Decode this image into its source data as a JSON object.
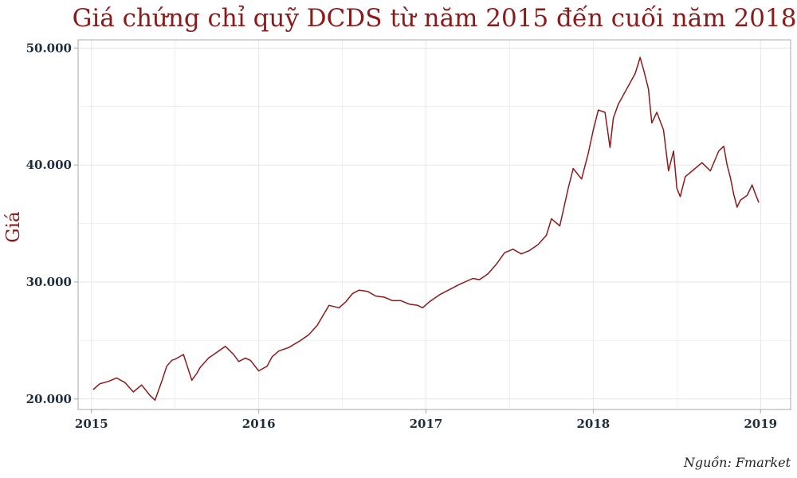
{
  "chart_data": {
    "type": "line",
    "title": "Giá chứng chỉ quỹ DCDS từ năm 2015 đến cuối năm 2018",
    "xlabel": "",
    "ylabel": "Giá",
    "source": "Nguồn: Fmarket",
    "xlim": [
      2014.92,
      2019.18
    ],
    "ylim": [
      19100,
      50700
    ],
    "x_ticks": [
      2015,
      2016,
      2017,
      2018,
      2019
    ],
    "x_tick_labels": [
      "2015",
      "2016",
      "2017",
      "2018",
      "2019"
    ],
    "y_ticks": [
      20000,
      30000,
      40000,
      50000
    ],
    "y_tick_labels": [
      "20.000",
      "30.000",
      "40.000",
      "50.000"
    ],
    "grid": true,
    "legend": "none",
    "series": [
      {
        "x": [
          2015.01,
          2015.05,
          2015.1,
          2015.15,
          2015.2,
          2015.25,
          2015.3,
          2015.35,
          2015.38,
          2015.42,
          2015.45,
          2015.48,
          2015.5,
          2015.55,
          2015.6,
          2015.63,
          2015.65,
          2015.7,
          2015.75,
          2015.8,
          2015.85,
          2015.88,
          2015.92,
          2015.95,
          2016.0,
          2016.05,
          2016.08,
          2016.12,
          2016.18,
          2016.25,
          2016.3,
          2016.35,
          2016.42,
          2016.48,
          2016.52,
          2016.56,
          2016.6,
          2016.65,
          2016.7,
          2016.75,
          2016.8,
          2016.85,
          2016.9,
          2016.95,
          2016.98,
          2017.02,
          2017.08,
          2017.12,
          2017.2,
          2017.28,
          2017.32,
          2017.37,
          2017.42,
          2017.47,
          2017.52,
          2017.57,
          2017.62,
          2017.67,
          2017.72,
          2017.75,
          2017.8,
          2017.85,
          2017.88,
          2017.93,
          2017.97,
          2018.0,
          2018.03,
          2018.07,
          2018.1,
          2018.12,
          2018.15,
          2018.2,
          2018.25,
          2018.27,
          2018.28,
          2018.3,
          2018.33,
          2018.35,
          2018.38,
          2018.42,
          2018.45,
          2018.48,
          2018.5,
          2018.52,
          2018.55,
          2018.6,
          2018.65,
          2018.7,
          2018.75,
          2018.78,
          2018.8,
          2018.82,
          2018.84,
          2018.86,
          2018.88,
          2018.92,
          2018.95,
          2018.97,
          2018.99
        ],
        "values": [
          20800,
          21300,
          21500,
          21800,
          21400,
          20600,
          21200,
          20300,
          19900,
          21500,
          22800,
          23300,
          23400,
          23800,
          21600,
          22200,
          22700,
          23500,
          24000,
          24500,
          23800,
          23200,
          23500,
          23300,
          22400,
          22800,
          23600,
          24100,
          24400,
          25000,
          25500,
          26300,
          28000,
          27800,
          28300,
          29000,
          29300,
          29200,
          28800,
          28700,
          28400,
          28400,
          28100,
          28000,
          27800,
          28300,
          28900,
          29200,
          29800,
          30300,
          30200,
          30700,
          31500,
          32500,
          32800,
          32400,
          32700,
          33200,
          34000,
          35400,
          34800,
          38000,
          39700,
          38800,
          41000,
          43000,
          44700,
          44500,
          41500,
          44000,
          45200,
          46500,
          47800,
          48700,
          49200,
          48200,
          46500,
          43600,
          44500,
          43000,
          39500,
          41200,
          38000,
          37300,
          39000,
          39600,
          40200,
          39500,
          41200,
          41600,
          40000,
          38900,
          37500,
          36400,
          37000,
          37400,
          38300,
          37500,
          36800
        ]
      }
    ]
  },
  "colors": {
    "line": "#8B1A1A",
    "title": "#8B1A1A",
    "ylabel": "#8B1A1A",
    "tick_text": "#1F2D3D",
    "grid": "#E6E6E6",
    "axis": "#A8A8A8"
  }
}
